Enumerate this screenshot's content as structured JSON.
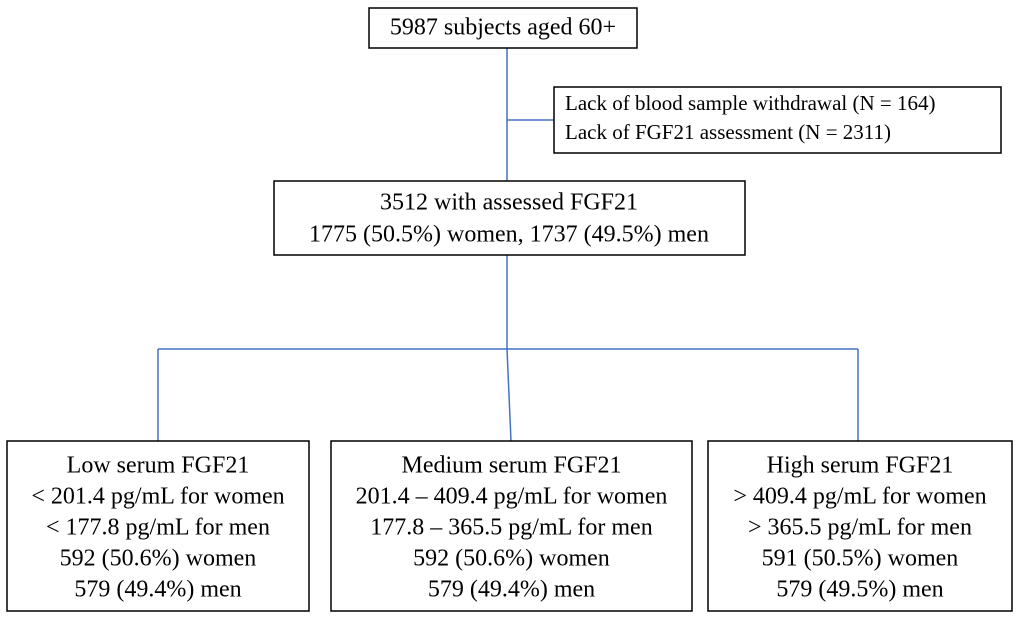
{
  "top_box": {
    "text": "5987 subjects aged 60+"
  },
  "exclusion": {
    "lines": [
      "Lack of blood sample withdrawal (N = 164)",
      "Lack of FGF21 assessment (N = 2311)"
    ]
  },
  "assessed": {
    "lines": [
      "3512 with assessed FGF21",
      "1775 (50.5%) women, 1737 (49.5%) men"
    ]
  },
  "groups": [
    {
      "lines": [
        "Low serum FGF21",
        "< 201.4 pg/mL for women",
        "< 177.8 pg/mL for men",
        "592 (50.6%) women",
        "579 (49.4%) men"
      ]
    },
    {
      "lines": [
        "Medium serum FGF21",
        "201.4 – 409.4 pg/mL for women",
        "177.8 – 365.5 pg/mL for men",
        "592 (50.6%) women",
        "579 (49.4%) men"
      ]
    },
    {
      "lines": [
        "High serum FGF21",
        "> 409.4 pg/mL for women",
        "> 365.5 pg/mL for men",
        "591 (50.5%) women",
        "579 (49.5%) men"
      ]
    }
  ]
}
